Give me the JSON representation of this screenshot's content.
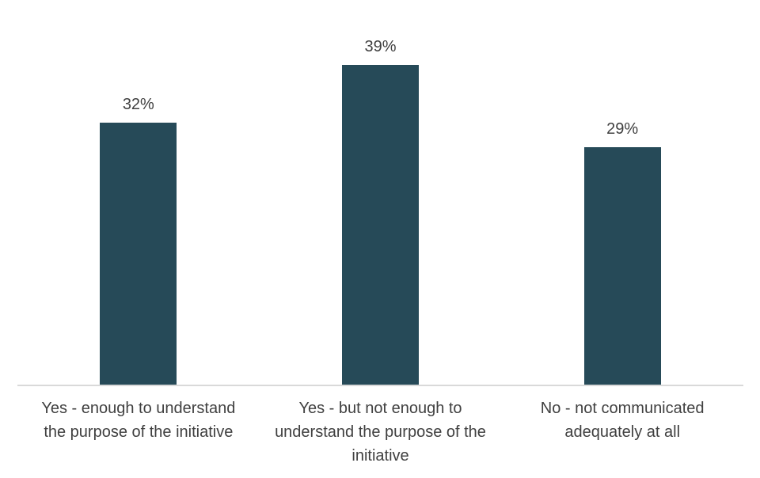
{
  "chart_data": {
    "type": "bar",
    "title": "",
    "xlabel": "",
    "ylabel": "",
    "categories": [
      "Yes - enough to understand\nthe purpose of the initiative",
      "Yes - but not enough to\nunderstand the purpose of the\ninitiative",
      "No - not communicated\nadequately at all"
    ],
    "values": [
      32,
      39,
      29
    ],
    "value_labels": [
      "32%",
      "39%",
      "29%"
    ],
    "ylim": [
      0,
      45
    ],
    "grid": false,
    "legend": false,
    "colors": {
      "bar": "#264a58",
      "axis_line": "#d9d9d9",
      "label_text": "#404040"
    }
  }
}
